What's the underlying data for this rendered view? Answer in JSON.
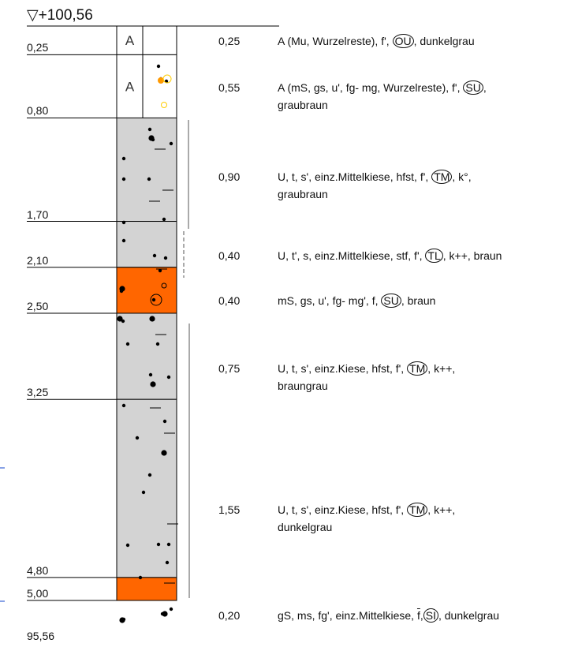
{
  "top_elevation": "▽+100,56",
  "bottom_elevation": "95,56",
  "layers": [
    {
      "top": 0.0,
      "bottom": 0.25,
      "depth_label": "0,25",
      "thickness": "0,25",
      "fill": "#ffffff",
      "horizon": "A",
      "desc_before": "A (Mu, Wurzelreste), f', ",
      "symbol": "OU",
      "desc_after": ", dunkelgrau",
      "desc_line2": ""
    },
    {
      "top": 0.25,
      "bottom": 0.8,
      "depth_label": "0,80",
      "thickness": "0,55",
      "fill": "#ffffff",
      "horizon": "A",
      "desc_before": "A (mS, gs, u', fg- mg, Wurzelreste), f', ",
      "symbol": "SU",
      "desc_after": ",",
      "desc_line2": "graubraun"
    },
    {
      "top": 0.8,
      "bottom": 1.7,
      "depth_label": "1,70",
      "thickness": "0,90",
      "fill": "#d3d3d3",
      "horizon": "",
      "desc_before": "U, t, s', einz.Mittelkiese, hfst, f', ",
      "symbol": "TM",
      "desc_after": ", k°,",
      "desc_line2": "graubraun"
    },
    {
      "top": 1.7,
      "bottom": 2.1,
      "depth_label": "2,10",
      "thickness": "0,40",
      "fill": "#d3d3d3",
      "horizon": "",
      "desc_before": "U, t', s, einz.Mittelkiese, stf, f', ",
      "symbol": "TL",
      "desc_after": ", k++, braun",
      "desc_line2": ""
    },
    {
      "top": 2.1,
      "bottom": 2.5,
      "depth_label": "2,50",
      "thickness": "0,40",
      "fill": "#ff6600",
      "horizon": "",
      "desc_before": "mS, gs, u', fg- mg', f, ",
      "symbol": "SU",
      "desc_after": ", braun",
      "desc_line2": ""
    },
    {
      "top": 2.5,
      "bottom": 3.25,
      "depth_label": "3,25",
      "thickness": "0,75",
      "fill": "#d3d3d3",
      "horizon": "",
      "desc_before": "U, t, s', einz.Kiese, hfst, f', ",
      "symbol": "TM",
      "desc_after": ", k++,",
      "desc_line2": "braungrau"
    },
    {
      "top": 3.25,
      "bottom": 4.8,
      "depth_label": "4,80",
      "thickness": "1,55",
      "fill": "#d3d3d3",
      "horizon": "",
      "desc_before": "U, t, s', einz.Kiese, hfst, f', ",
      "symbol": "TM",
      "desc_after": ", k++,",
      "desc_line2": "dunkelgrau"
    },
    {
      "top": 4.8,
      "bottom": 5.0,
      "depth_label": "5,00",
      "thickness": "0,20",
      "fill": "#ff6600",
      "horizon": "",
      "desc_before": "gS, ms, fg', einz.Mittelkiese, ",
      "desc_overbar": "f",
      "desc_mid": ",",
      "symbol": "SI",
      "desc_after": ", dunkelgrau",
      "desc_line2": ""
    }
  ]
}
